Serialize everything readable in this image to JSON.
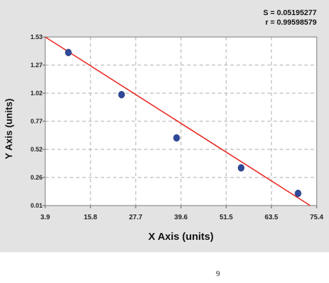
{
  "stats": {
    "s_label": "S = 0.05195277",
    "r_label": "r = 0.99598579"
  },
  "page_number": "9",
  "colors": {
    "panel": "#e3e3e3",
    "plot_area": "#ffffff",
    "grid": "#a8a8a8",
    "fit_line": "#e8261e",
    "points": "#2f4a9a"
  },
  "chart_data": {
    "type": "scatter",
    "xlabel": "X Axis (units)",
    "ylabel": "Y Axis (units)",
    "xlim": [
      3.9,
      75.4
    ],
    "ylim": [
      0.01,
      1.53
    ],
    "x_ticks": [
      "3.9",
      "15.8",
      "27.7",
      "39.6",
      "51.5",
      "63.5",
      "75.4"
    ],
    "y_ticks": [
      "0.01",
      "0.26",
      "0.52",
      "0.77",
      "1.02",
      "1.27",
      "1.53"
    ],
    "grid": true,
    "series": [
      {
        "points": [
          {
            "x": 10,
            "y": 1.39
          },
          {
            "x": 24,
            "y": 1.01
          },
          {
            "x": 38.5,
            "y": 0.62
          },
          {
            "x": 55.5,
            "y": 0.35
          },
          {
            "x": 70.5,
            "y": 0.12
          }
        ]
      }
    ],
    "fit_line": {
      "x": [
        3.9,
        73.7
      ],
      "y": [
        1.53,
        0.01
      ]
    }
  }
}
